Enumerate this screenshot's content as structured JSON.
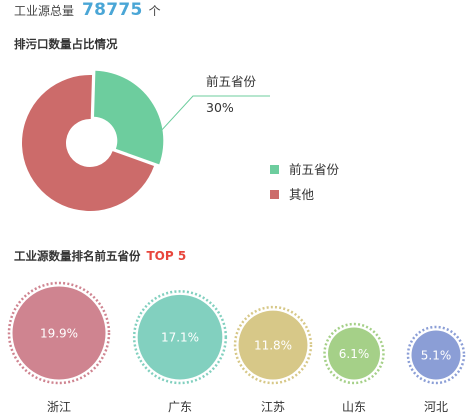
{
  "header": {
    "total_label": "工业源总量",
    "total_value": "78775",
    "total_unit": "个"
  },
  "pie_section": {
    "title": "排污口数量占比情况"
  },
  "rank_section": {
    "title": "工业源数量排名前五省份",
    "top_label": "TOP 5"
  },
  "colors": {
    "pie_green": "#6dcd9e",
    "pie_red": "#cc6b6a",
    "leader_line": "#6dcd9e",
    "top_red": "#e8463c",
    "total_blue": "#4aa6d6"
  },
  "chart_data": [
    {
      "type": "pie",
      "title": "排污口数量占比情况",
      "slices": [
        {
          "name": "前五省份",
          "value": 30,
          "color": "#6dcd9e"
        },
        {
          "name": "其他",
          "value": 70,
          "color": "#cc6b6a"
        }
      ],
      "legend": {
        "placement": "right"
      },
      "annotation": {
        "name": "前五省份",
        "value_label": "30%"
      }
    },
    {
      "type": "bar",
      "title": "工业源数量排名前五省份 TOP 5",
      "encoding": "bubble size",
      "categories": [
        "浙江",
        "广东",
        "江苏",
        "山东",
        "河北"
      ],
      "values": [
        19.9,
        17.1,
        11.8,
        6.1,
        5.1
      ],
      "value_labels": [
        "19.9%",
        "17.1%",
        "11.8%",
        "6.1%",
        "5.1%"
      ],
      "colors": [
        "#cf8490",
        "#82d0bf",
        "#d7c888",
        "#a5d088",
        "#8b9ed6"
      ]
    }
  ]
}
